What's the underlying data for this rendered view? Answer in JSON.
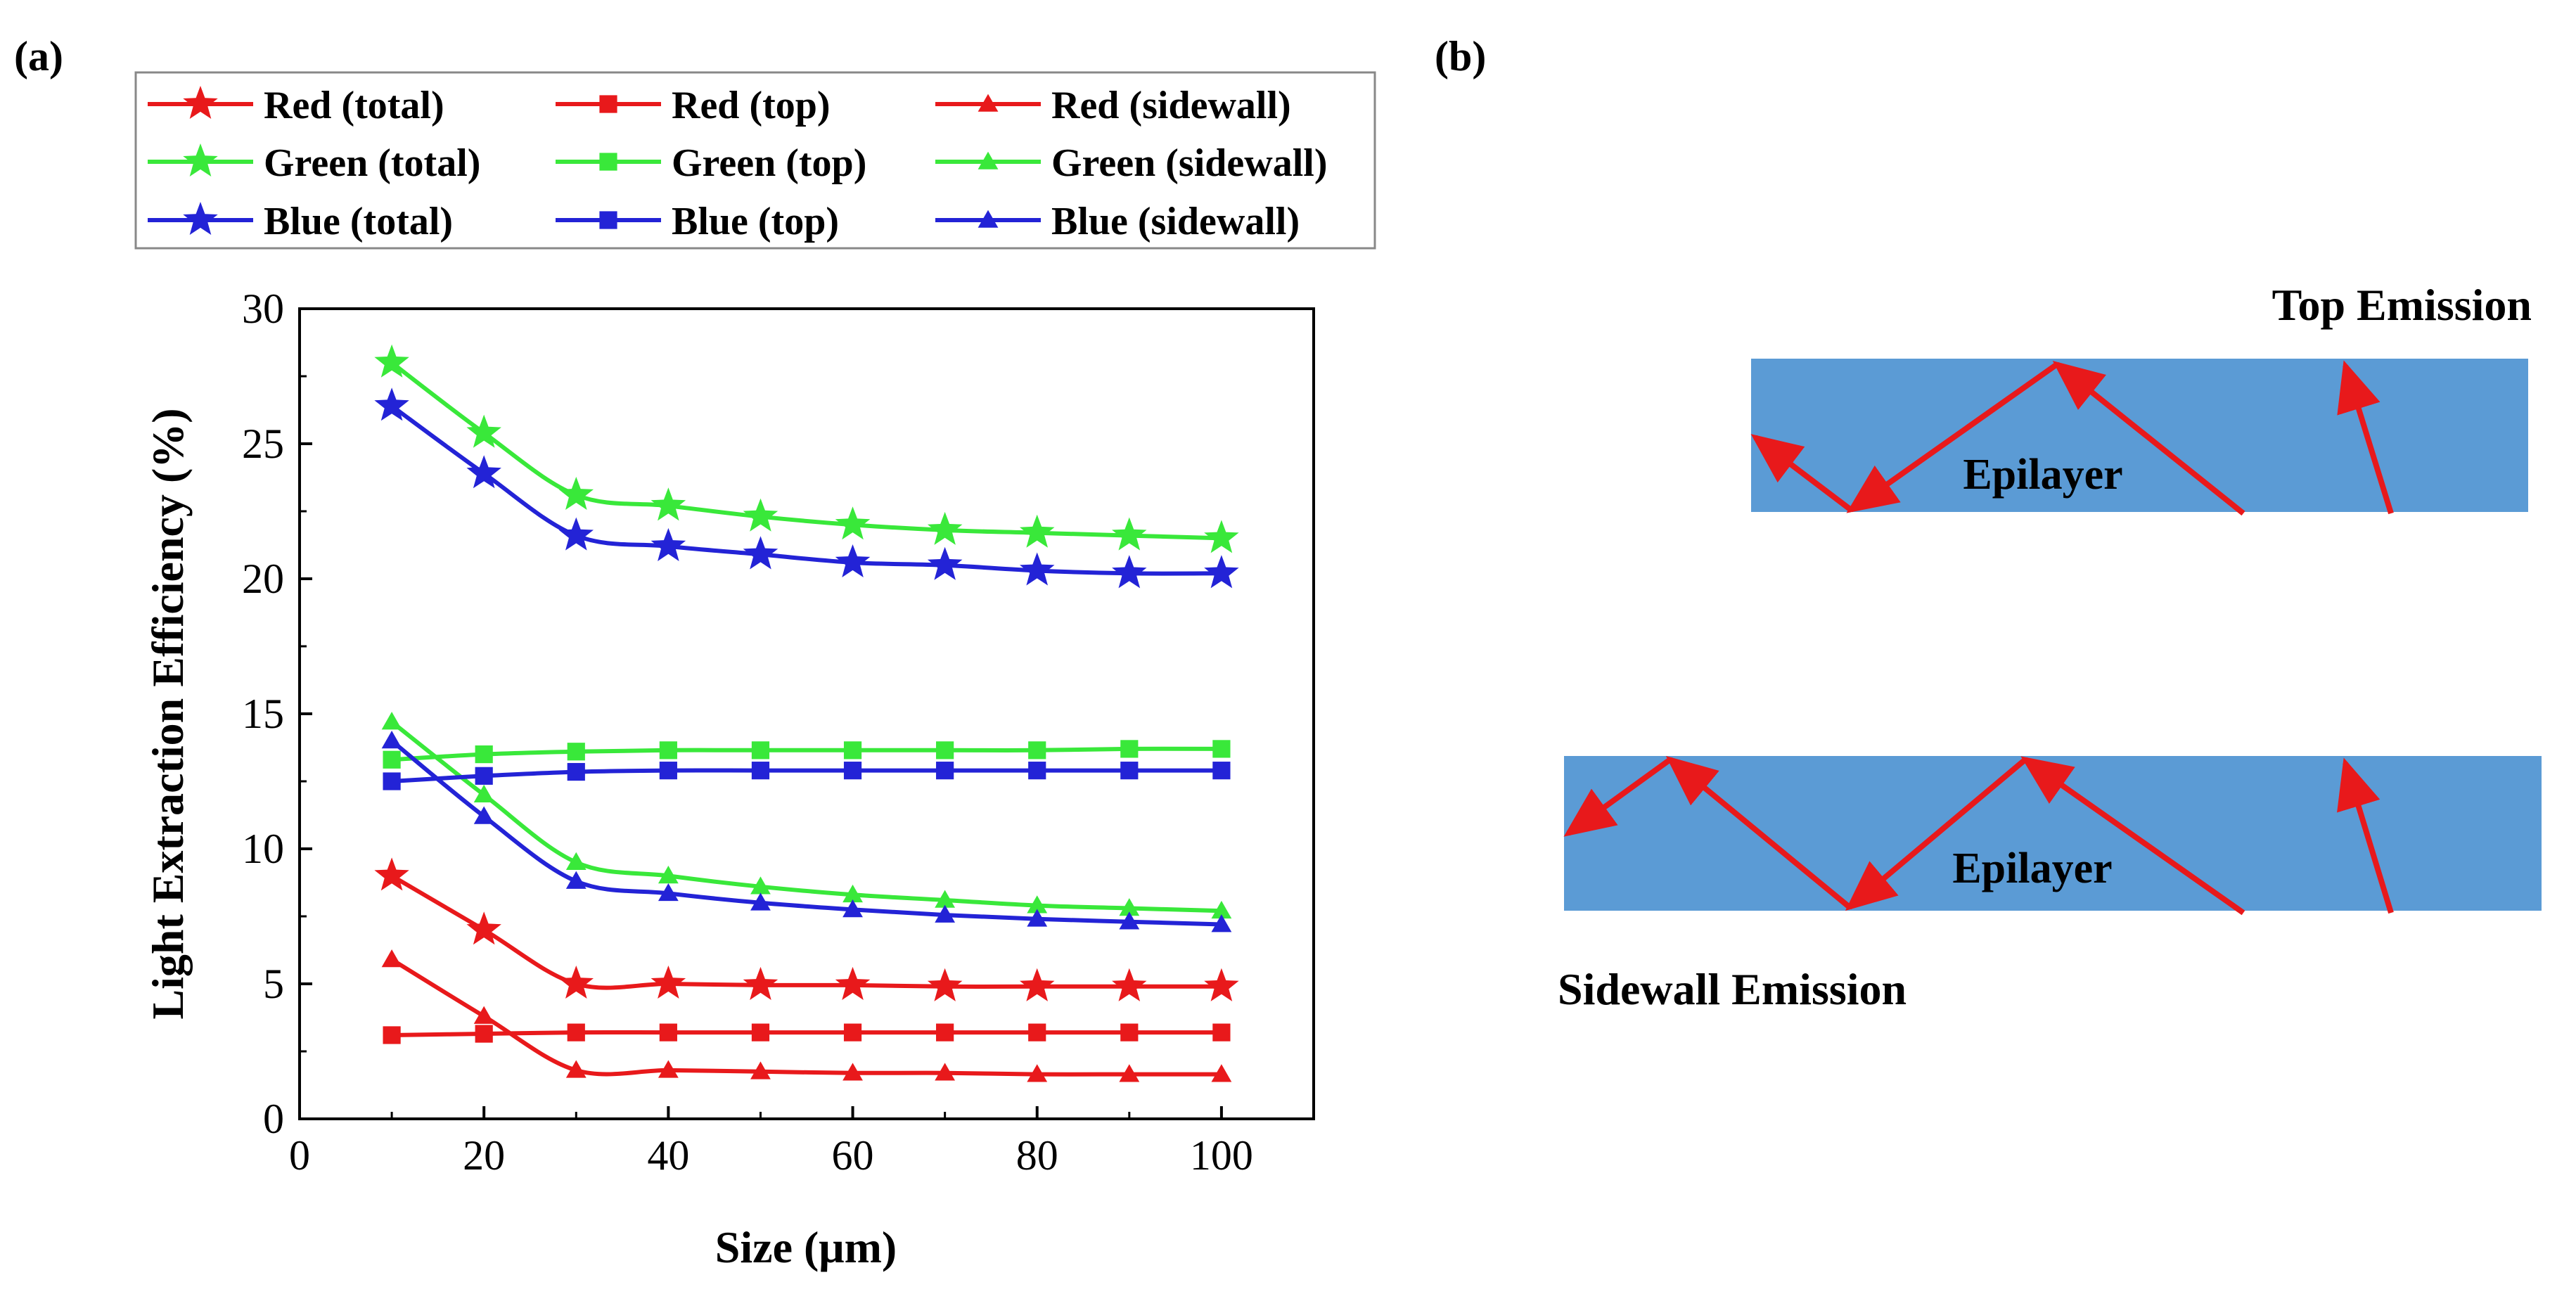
{
  "panel_labels": {
    "a": "(a)",
    "b": "(b)"
  },
  "colors": {
    "red": "#e8191b",
    "green": "#39e83a",
    "blue": "#2323d6",
    "epilayer": "#5b9bd5",
    "arrow": "#e8191b",
    "axis": "#000000"
  },
  "chart_data": {
    "type": "line",
    "title": "",
    "xlabel": "Size (μm)",
    "ylabel": "Light Extraction Efficiency (%)",
    "xlim": [
      0,
      110
    ],
    "ylim": [
      0,
      30
    ],
    "xticks": [
      0,
      20,
      40,
      60,
      80,
      100
    ],
    "yticks": [
      0,
      5,
      10,
      15,
      20,
      25,
      30
    ],
    "legend_position": "top (above plot, 3 columns)",
    "x": [
      10,
      20,
      30,
      40,
      50,
      60,
      70,
      80,
      90,
      100
    ],
    "series": [
      {
        "name": "Red (total)",
        "color": "red",
        "marker": "star",
        "values": [
          9.0,
          7.0,
          5.0,
          5.0,
          4.95,
          4.95,
          4.9,
          4.9,
          4.9,
          4.9
        ]
      },
      {
        "name": "Red (top)",
        "color": "red",
        "marker": "square",
        "values": [
          3.1,
          3.15,
          3.2,
          3.2,
          3.2,
          3.2,
          3.2,
          3.2,
          3.2,
          3.2
        ]
      },
      {
        "name": "Red (sidewall)",
        "color": "red",
        "marker": "triangle",
        "values": [
          5.9,
          3.8,
          1.8,
          1.8,
          1.75,
          1.7,
          1.7,
          1.65,
          1.65,
          1.65
        ]
      },
      {
        "name": "Green (total)",
        "color": "green",
        "marker": "star",
        "values": [
          28.0,
          25.4,
          23.1,
          22.7,
          22.3,
          22.0,
          21.8,
          21.7,
          21.6,
          21.5
        ]
      },
      {
        "name": "Green (top)",
        "color": "green",
        "marker": "square",
        "values": [
          13.3,
          13.5,
          13.6,
          13.65,
          13.65,
          13.65,
          13.65,
          13.65,
          13.7,
          13.7
        ]
      },
      {
        "name": "Green (sidewall)",
        "color": "green",
        "marker": "triangle",
        "values": [
          14.7,
          12.0,
          9.5,
          9.0,
          8.6,
          8.3,
          8.1,
          7.9,
          7.8,
          7.7
        ]
      },
      {
        "name": "Blue (total)",
        "color": "blue",
        "marker": "star",
        "values": [
          26.4,
          23.9,
          21.6,
          21.2,
          20.9,
          20.6,
          20.5,
          20.3,
          20.2,
          20.2
        ]
      },
      {
        "name": "Blue (top)",
        "color": "blue",
        "marker": "square",
        "values": [
          12.5,
          12.7,
          12.85,
          12.9,
          12.9,
          12.9,
          12.9,
          12.9,
          12.9,
          12.9
        ]
      },
      {
        "name": "Blue (sidewall)",
        "color": "blue",
        "marker": "triangle",
        "values": [
          14.0,
          11.2,
          8.8,
          8.35,
          8.0,
          7.75,
          7.55,
          7.4,
          7.3,
          7.2
        ]
      }
    ]
  },
  "diagram": {
    "top_title": "Top Emission",
    "bottom_title": "Sidewall Emission",
    "epilayer_label_top": "Epilayer",
    "epilayer_label_bottom": "Epilayer"
  }
}
